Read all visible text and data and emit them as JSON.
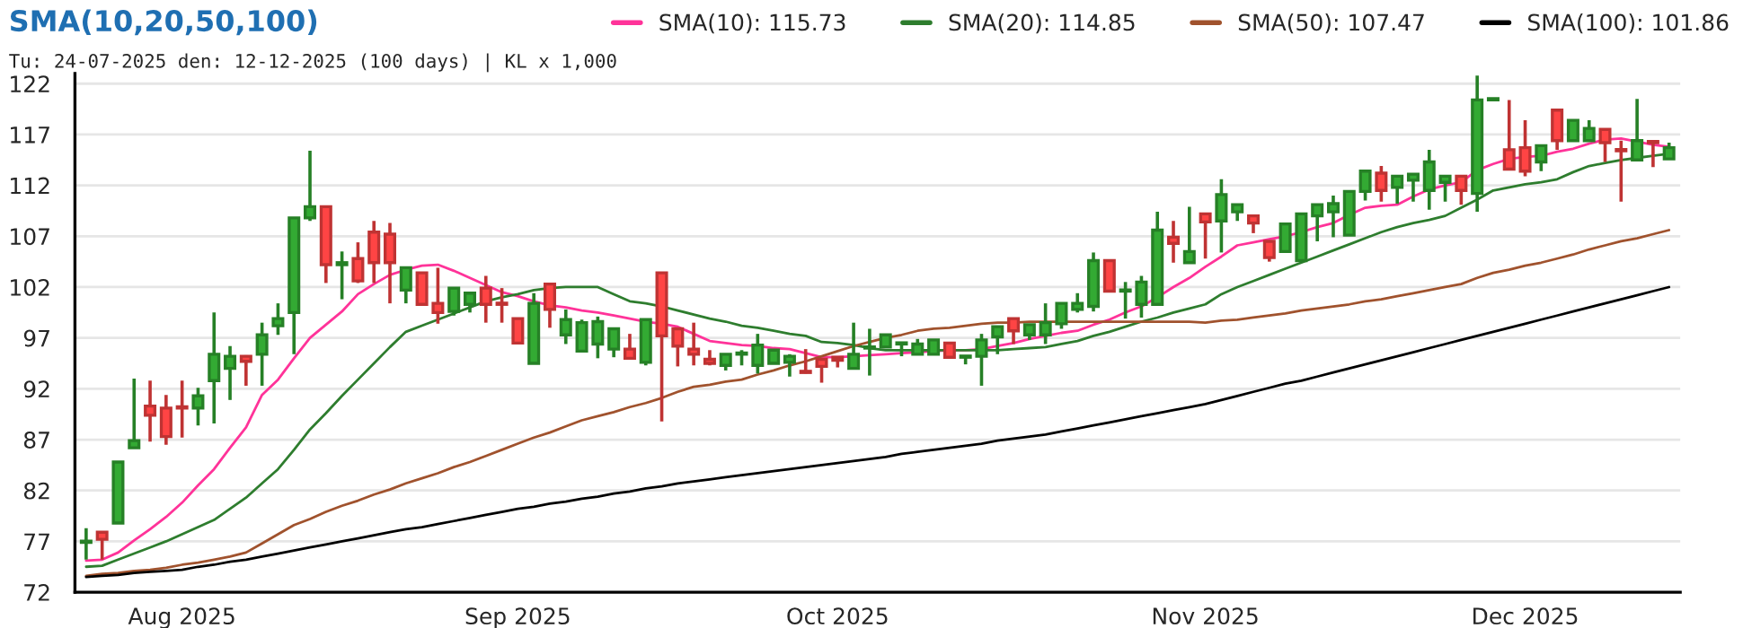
{
  "chart_data": {
    "type": "candlestick",
    "title": "SMA(10,20,50,100)",
    "subtitle": "Tu: 24-07-2025 den: 12-12-2025 (100 days) | KL x 1,000",
    "categories": [
      null,
      null,
      null,
      null,
      null,
      null,
      "Aug 2025",
      null,
      null,
      null,
      null,
      null,
      null,
      null,
      null,
      null,
      null,
      null,
      null,
      null,
      null,
      null,
      null,
      null,
      null,
      null,
      null,
      "Sep 2025",
      null,
      null,
      null,
      null,
      null,
      null,
      null,
      null,
      null,
      null,
      null,
      null,
      null,
      null,
      null,
      null,
      null,
      null,
      null,
      "Oct 2025",
      null,
      null,
      null,
      null,
      null,
      null,
      null,
      null,
      null,
      null,
      null,
      null,
      null,
      null,
      null,
      null,
      null,
      null,
      null,
      null,
      null,
      null,
      "Nov 2025",
      null,
      null,
      null,
      null,
      null,
      null,
      null,
      null,
      null,
      null,
      null,
      null,
      null,
      null,
      null,
      null,
      null,
      null,
      null,
      "Dec 2025",
      null,
      null,
      null,
      null,
      null,
      null,
      null,
      null,
      null
    ],
    "ohlc": [
      [
        76.9,
        78.3,
        75.2,
        77.0
      ],
      [
        77.9,
        77.9,
        75.2,
        77.2
      ],
      [
        78.8,
        84.8,
        78.8,
        84.8
      ],
      [
        86.2,
        93.0,
        86.2,
        86.9
      ],
      [
        90.3,
        92.8,
        86.8,
        89.4
      ],
      [
        90.1,
        91.4,
        86.5,
        87.3
      ],
      [
        90.2,
        92.8,
        87.2,
        90.1
      ],
      [
        90.1,
        92.1,
        88.4,
        91.3
      ],
      [
        92.8,
        99.5,
        88.6,
        95.4
      ],
      [
        94.0,
        96.2,
        90.9,
        95.2
      ],
      [
        95.2,
        95.3,
        92.3,
        94.7
      ],
      [
        95.4,
        98.5,
        92.3,
        97.3
      ],
      [
        98.2,
        100.4,
        97.3,
        98.9
      ],
      [
        99.5,
        108.8,
        95.4,
        108.8
      ],
      [
        108.8,
        115.4,
        108.5,
        109.9
      ],
      [
        109.9,
        109.9,
        102.4,
        104.2
      ],
      [
        104.2,
        105.5,
        100.8,
        104.4
      ],
      [
        104.8,
        106.4,
        102.4,
        102.6
      ],
      [
        107.4,
        108.5,
        102.4,
        104.4
      ],
      [
        107.2,
        108.3,
        100.4,
        104.4
      ],
      [
        101.7,
        103.9,
        100.4,
        103.9
      ],
      [
        103.4,
        103.4,
        100.3,
        100.3
      ],
      [
        100.4,
        103.9,
        98.4,
        99.5
      ],
      [
        99.6,
        101.9,
        99.2,
        101.9
      ],
      [
        100.3,
        101.4,
        99.5,
        101.4
      ],
      [
        101.9,
        103.1,
        98.5,
        100.3
      ],
      [
        100.4,
        101.9,
        98.5,
        100.3
      ],
      [
        98.9,
        98.9,
        96.5,
        96.5
      ],
      [
        94.5,
        101.4,
        94.5,
        100.4
      ],
      [
        102.3,
        102.3,
        98.0,
        99.8
      ],
      [
        97.3,
        99.8,
        96.4,
        98.8
      ],
      [
        95.7,
        98.8,
        95.7,
        98.5
      ],
      [
        96.4,
        99.1,
        95.0,
        98.6
      ],
      [
        95.9,
        97.9,
        95.1,
        97.9
      ],
      [
        95.9,
        97.4,
        95.0,
        95.0
      ],
      [
        94.6,
        98.8,
        94.3,
        98.8
      ],
      [
        103.4,
        103.4,
        88.8,
        97.2
      ],
      [
        97.9,
        97.9,
        94.2,
        96.2
      ],
      [
        95.9,
        98.5,
        94.3,
        95.4
      ],
      [
        94.9,
        95.8,
        94.3,
        94.5
      ],
      [
        94.3,
        95.4,
        93.8,
        95.4
      ],
      [
        95.4,
        95.8,
        94.3,
        95.5
      ],
      [
        94.3,
        97.4,
        93.5,
        96.3
      ],
      [
        94.5,
        95.8,
        94.5,
        95.8
      ],
      [
        94.6,
        95.4,
        93.2,
        95.2
      ],
      [
        93.7,
        95.9,
        93.5,
        93.6
      ],
      [
        94.9,
        94.9,
        92.6,
        94.2
      ],
      [
        95.1,
        95.1,
        94.1,
        94.8
      ],
      [
        94.0,
        98.5,
        94.0,
        95.4
      ],
      [
        96.0,
        97.9,
        93.3,
        96.1
      ],
      [
        96.1,
        97.3,
        96.1,
        97.3
      ],
      [
        96.4,
        96.5,
        95.2,
        96.5
      ],
      [
        95.4,
        96.9,
        95.4,
        96.4
      ],
      [
        95.4,
        96.8,
        95.4,
        96.8
      ],
      [
        96.5,
        96.5,
        95.1,
        95.1
      ],
      [
        95.1,
        95.2,
        94.4,
        95.2
      ],
      [
        95.2,
        97.4,
        92.3,
        96.8
      ],
      [
        97.1,
        98.1,
        95.4,
        98.1
      ],
      [
        98.9,
        98.9,
        96.4,
        97.7
      ],
      [
        97.3,
        98.3,
        96.8,
        98.3
      ],
      [
        97.3,
        100.4,
        96.4,
        98.5
      ],
      [
        98.4,
        100.4,
        97.9,
        100.4
      ],
      [
        99.8,
        101.4,
        99.5,
        100.4
      ],
      [
        100.1,
        105.4,
        99.6,
        104.6
      ],
      [
        104.6,
        104.6,
        101.6,
        101.6
      ],
      [
        101.6,
        102.5,
        98.9,
        101.7
      ],
      [
        100.3,
        103.1,
        99.0,
        102.5
      ],
      [
        100.3,
        109.4,
        100.3,
        107.6
      ],
      [
        106.9,
        108.5,
        104.4,
        106.3
      ],
      [
        104.4,
        109.9,
        104.4,
        105.5
      ],
      [
        109.2,
        109.2,
        104.8,
        108.4
      ],
      [
        108.5,
        112.6,
        105.4,
        111.1
      ],
      [
        109.4,
        110.2,
        108.5,
        110.1
      ],
      [
        109.0,
        109.0,
        107.3,
        108.3
      ],
      [
        106.5,
        106.5,
        104.5,
        104.9
      ],
      [
        105.5,
        108.2,
        105.5,
        108.2
      ],
      [
        104.6,
        109.2,
        104.6,
        109.2
      ],
      [
        109.0,
        110.1,
        106.5,
        110.1
      ],
      [
        109.4,
        111.0,
        106.9,
        110.2
      ],
      [
        107.1,
        111.4,
        107.1,
        111.4
      ],
      [
        111.4,
        113.4,
        110.5,
        113.4
      ],
      [
        113.2,
        113.9,
        110.4,
        111.5
      ],
      [
        111.8,
        112.9,
        110.2,
        112.9
      ],
      [
        112.5,
        113.1,
        110.4,
        113.1
      ],
      [
        111.5,
        115.5,
        109.6,
        114.3
      ],
      [
        112.3,
        112.9,
        110.4,
        112.9
      ],
      [
        112.9,
        112.9,
        110.1,
        111.5
      ],
      [
        111.2,
        122.8,
        109.4,
        120.4
      ],
      [
        120.4,
        120.5,
        120.3,
        120.5
      ],
      [
        115.5,
        120.4,
        113.6,
        113.6
      ],
      [
        115.7,
        118.4,
        112.9,
        113.4
      ],
      [
        114.3,
        115.9,
        113.4,
        115.9
      ],
      [
        119.4,
        119.4,
        115.5,
        116.4
      ],
      [
        116.4,
        118.4,
        116.4,
        118.4
      ],
      [
        116.4,
        118.4,
        116.4,
        117.6
      ],
      [
        117.5,
        117.5,
        114.3,
        116.2
      ],
      [
        115.5,
        116.4,
        110.4,
        115.4
      ],
      [
        114.5,
        120.5,
        114.5,
        116.4
      ],
      [
        116.3,
        116.3,
        113.8,
        116.2
      ],
      [
        114.6,
        116.2,
        114.6,
        115.7
      ]
    ],
    "colors": [
      "#33aa33",
      "#ff4444",
      "#33aa33",
      "#33aa33",
      "#ff4444",
      "#ff4444",
      "#ff4444",
      "#33aa33",
      "#33aa33",
      "#33aa33",
      "#ff4444",
      "#33aa33",
      "#33aa33",
      "#33aa33",
      "#33aa33",
      "#ff4444",
      "#33aa33",
      "#ff4444",
      "#ff4444",
      "#ff4444",
      "#33aa33",
      "#ff4444",
      "#ff4444",
      "#33aa33",
      "#33aa33",
      "#ff4444",
      "#ff4444",
      "#ff4444",
      "#33aa33",
      "#ff4444",
      "#33aa33",
      "#33aa33",
      "#33aa33",
      "#33aa33",
      "#ff4444",
      "#33aa33",
      "#ff4444",
      "#ff4444",
      "#ff4444",
      "#ff4444",
      "#33aa33",
      "#33aa33",
      "#33aa33",
      "#33aa33",
      "#33aa33",
      "#ff4444",
      "#ff4444",
      "#ff4444",
      "#33aa33",
      "#33aa33",
      "#33aa33",
      "#33aa33",
      "#33aa33",
      "#33aa33",
      "#ff4444",
      "#33aa33",
      "#33aa33",
      "#33aa33",
      "#ff4444",
      "#33aa33",
      "#33aa33",
      "#33aa33",
      "#33aa33",
      "#33aa33",
      "#ff4444",
      "#33aa33",
      "#33aa33",
      "#33aa33",
      "#ff4444",
      "#33aa33",
      "#ff4444",
      "#33aa33",
      "#33aa33",
      "#ff4444",
      "#ff4444",
      "#33aa33",
      "#33aa33",
      "#33aa33",
      "#33aa33",
      "#33aa33",
      "#33aa33",
      "#ff4444",
      "#33aa33",
      "#33aa33",
      "#33aa33",
      "#33aa33",
      "#ff4444",
      "#33aa33",
      "#33aa33",
      "#ff4444",
      "#ff4444",
      "#33aa33",
      "#ff4444",
      "#33aa33",
      "#33aa33",
      "#ff4444",
      "#ff4444",
      "#33aa33",
      "#ff4444",
      "#33aa33"
    ],
    "series": [
      {
        "type": "line",
        "name": "SMA(10): 115.73",
        "color": "#ff3399",
        "values": [
          75.1,
          75.2,
          75.9,
          77.1,
          78.2,
          79.4,
          80.8,
          82.5,
          84.1,
          86.2,
          88.2,
          91.4,
          92.9,
          95.0,
          97.0,
          98.3,
          99.6,
          101.3,
          102.3,
          103.2,
          103.7,
          104.1,
          104.2,
          103.6,
          102.9,
          102.2,
          101.5,
          101.1,
          100.6,
          100.2,
          100.0,
          99.7,
          99.5,
          99.2,
          98.9,
          98.6,
          98.4,
          98.1,
          97.4,
          96.7,
          96.5,
          96.3,
          96.2,
          96.0,
          95.9,
          95.5,
          95.1,
          95.1,
          95.2,
          95.3,
          95.4,
          95.5,
          95.6,
          95.7,
          95.8,
          95.8,
          95.9,
          96.2,
          96.5,
          96.9,
          97.2,
          97.5,
          97.7,
          98.3,
          98.8,
          99.5,
          100.1,
          101.0,
          102.0,
          102.9,
          104.0,
          105.0,
          106.1,
          106.4,
          106.7,
          107.0,
          107.4,
          107.9,
          108.3,
          109.1,
          109.8,
          110.0,
          110.1,
          110.9,
          111.6,
          112.0,
          112.3,
          113.5,
          114.1,
          114.6,
          114.8,
          114.9,
          115.3,
          115.6,
          116.1,
          116.5,
          116.6,
          116.3,
          116.0,
          115.8
        ]
      },
      {
        "type": "line",
        "name": "SMA(20): 114.85",
        "color": "#2e7d2e",
        "values": [
          74.5,
          74.6,
          75.2,
          75.8,
          76.4,
          77.0,
          77.7,
          78.4,
          79.1,
          80.2,
          81.3,
          82.7,
          84.1,
          86.0,
          88.0,
          89.6,
          91.3,
          92.9,
          94.5,
          96.1,
          97.6,
          98.2,
          98.8,
          99.4,
          100.0,
          100.6,
          101.0,
          101.3,
          101.7,
          101.9,
          102.0,
          102.0,
          102.0,
          101.3,
          100.6,
          100.4,
          100.1,
          99.7,
          99.3,
          98.9,
          98.6,
          98.2,
          98.0,
          97.7,
          97.4,
          97.2,
          96.6,
          96.5,
          96.3,
          96.0,
          95.8,
          95.8,
          95.8,
          95.8,
          95.8,
          95.8,
          95.8,
          95.8,
          95.9,
          96.0,
          96.1,
          96.4,
          96.7,
          97.2,
          97.6,
          98.1,
          98.6,
          99.0,
          99.5,
          99.9,
          100.3,
          101.3,
          102.0,
          102.6,
          103.2,
          103.8,
          104.4,
          105.0,
          105.6,
          106.2,
          106.8,
          107.4,
          107.9,
          108.3,
          108.6,
          109.0,
          109.8,
          110.6,
          111.5,
          111.8,
          112.1,
          112.3,
          112.6,
          113.3,
          113.9,
          114.2,
          114.5,
          114.7,
          114.9,
          115.1
        ]
      },
      {
        "type": "line",
        "name": "SMA(50): 107.47",
        "color": "#a0522d",
        "values": [
          73.6,
          73.8,
          73.9,
          74.1,
          74.2,
          74.4,
          74.7,
          74.9,
          75.2,
          75.5,
          75.9,
          76.8,
          77.7,
          78.6,
          79.2,
          79.9,
          80.5,
          81.0,
          81.6,
          82.1,
          82.7,
          83.2,
          83.7,
          84.3,
          84.8,
          85.4,
          86.0,
          86.6,
          87.2,
          87.7,
          88.3,
          88.9,
          89.3,
          89.7,
          90.2,
          90.6,
          91.1,
          91.7,
          92.2,
          92.4,
          92.7,
          92.9,
          93.4,
          93.8,
          94.3,
          94.7,
          95.2,
          95.7,
          96.2,
          96.6,
          97.0,
          97.3,
          97.7,
          97.9,
          98.0,
          98.2,
          98.4,
          98.5,
          98.5,
          98.6,
          98.6,
          98.6,
          98.6,
          98.6,
          98.6,
          98.6,
          98.6,
          98.6,
          98.6,
          98.6,
          98.5,
          98.7,
          98.8,
          99.0,
          99.2,
          99.4,
          99.7,
          99.9,
          100.1,
          100.3,
          100.6,
          100.8,
          101.1,
          101.4,
          101.7,
          102.0,
          102.3,
          102.9,
          103.4,
          103.7,
          104.1,
          104.4,
          104.8,
          105.2,
          105.7,
          106.1,
          106.5,
          106.8,
          107.2,
          107.6
        ]
      },
      {
        "type": "line",
        "name": "SMA(100): 101.86",
        "color": "#000000",
        "values": [
          73.5,
          73.6,
          73.7,
          73.9,
          74.0,
          74.1,
          74.2,
          74.5,
          74.7,
          75.0,
          75.2,
          75.5,
          75.8,
          76.1,
          76.4,
          76.7,
          77.0,
          77.3,
          77.6,
          77.9,
          78.2,
          78.4,
          78.7,
          79.0,
          79.3,
          79.6,
          79.9,
          80.2,
          80.4,
          80.7,
          80.9,
          81.2,
          81.4,
          81.7,
          81.9,
          82.2,
          82.4,
          82.7,
          82.9,
          83.1,
          83.3,
          83.5,
          83.7,
          83.9,
          84.1,
          84.3,
          84.5,
          84.7,
          84.9,
          85.1,
          85.3,
          85.6,
          85.8,
          86.0,
          86.2,
          86.4,
          86.6,
          86.9,
          87.1,
          87.3,
          87.5,
          87.8,
          88.1,
          88.4,
          88.7,
          89.0,
          89.3,
          89.6,
          89.9,
          90.2,
          90.5,
          90.9,
          91.3,
          91.7,
          92.1,
          92.5,
          92.8,
          93.2,
          93.6,
          94.0,
          94.4,
          94.8,
          95.2,
          95.6,
          96.0,
          96.4,
          96.8,
          97.2,
          97.6,
          98.0,
          98.4,
          98.8,
          99.2,
          99.6,
          100.0,
          100.4,
          100.8,
          101.2,
          101.6,
          102.0
        ]
      }
    ],
    "ylim": [
      72,
      123
    ],
    "yticks": [
      72,
      77,
      82,
      87,
      92,
      97,
      102,
      107,
      112,
      117,
      122
    ],
    "grid": "y",
    "legend": "top right"
  }
}
